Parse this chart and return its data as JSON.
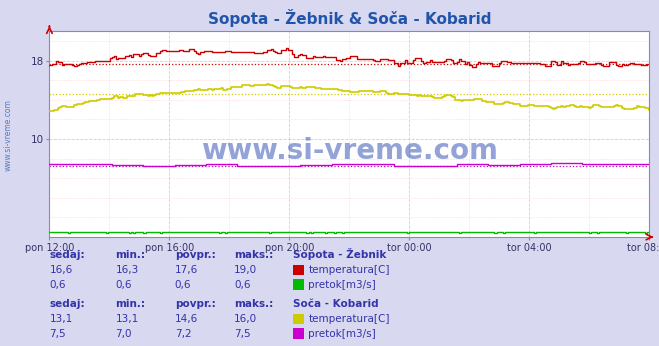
{
  "title": "Sopota - Žebnik & Soča - Kobarid",
  "title_color": "#2255aa",
  "bg_color": "#d8d8f0",
  "plot_bg_color": "#ffffff",
  "xlabel": "",
  "ylabel": "",
  "ylim": [
    0,
    21
  ],
  "yticks": [
    10,
    18
  ],
  "xticklabels": [
    "pon 12:00",
    "pon 16:00",
    "pon 20:00",
    "tor 00:00",
    "tor 04:00",
    "tor 08:00"
  ],
  "n_points": 288,
  "sopota_temp_color": "#cc0000",
  "sopota_temp_avg": 17.6,
  "sopota_pretok_color": "#00bb00",
  "sopota_pretok_avg": 0.6,
  "soca_temp_color": "#cccc00",
  "soca_temp_avg": 14.6,
  "soca_pretok_color": "#cc00cc",
  "soca_pretok_avg": 7.2,
  "watermark": "www.si-vreme.com",
  "watermark_color": "#1133aa",
  "left_label": "www.si-vreme.com",
  "left_label_color": "#2255aa",
  "table_color": "#3333aa",
  "table_header": [
    "sedaj:",
    "min.:",
    "povpr.:",
    "maks.:"
  ],
  "sopota_label": "Sopota - Žebnik",
  "soca_label": "Soča - Kobarid",
  "sopota_temp_sedaj": "16,6",
  "sopota_temp_min": "16,3",
  "sopota_temp_povpr": "17,6",
  "sopota_temp_maks": "19,0",
  "sopota_pretok_sedaj": "0,6",
  "sopota_pretok_min": "0,6",
  "sopota_pretok_povpr": "0,6",
  "sopota_pretok_maks": "0,6",
  "soca_temp_sedaj": "13,1",
  "soca_temp_min": "13,1",
  "soca_temp_povpr": "14,6",
  "soca_temp_maks": "16,0",
  "soca_pretok_sedaj": "7,5",
  "soca_pretok_min": "7,0",
  "soca_pretok_povpr": "7,2",
  "soca_pretok_maks": "7,5",
  "temp_label": "temperatura[C]",
  "pretok_label": "pretok[m3/s]"
}
